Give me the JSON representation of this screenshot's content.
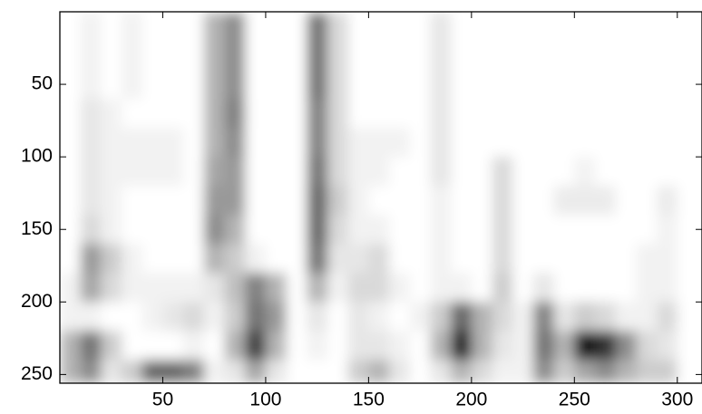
{
  "chart_data": {
    "type": "heatmap",
    "colormap": "gray-reversed",
    "xlim": [
      0,
      312
    ],
    "ylim": [
      0,
      256
    ],
    "y_reversed": true,
    "xticks": [
      50,
      100,
      150,
      200,
      250,
      300
    ],
    "yticks": [
      50,
      100,
      150,
      200,
      250
    ],
    "x_bins": [
      0,
      10,
      20,
      30,
      40,
      50,
      60,
      70,
      80,
      90,
      100,
      110,
      120,
      130,
      140,
      150,
      160,
      170,
      180,
      190,
      200,
      210,
      220,
      230,
      240,
      250,
      260,
      270,
      280,
      290,
      300,
      312
    ],
    "y_bins": [
      0,
      20,
      40,
      60,
      80,
      100,
      120,
      140,
      160,
      180,
      200,
      220,
      240,
      256
    ],
    "z": [
      [
        0,
        0.05,
        0,
        0.05,
        0,
        0,
        0,
        0.3,
        0.45,
        0,
        0,
        0,
        0.55,
        0.15,
        0,
        0,
        0,
        0,
        0.1,
        0,
        0,
        0,
        0,
        0,
        0,
        0,
        0,
        0,
        0,
        0,
        0
      ],
      [
        0,
        0.05,
        0,
        0.05,
        0,
        0,
        0,
        0.3,
        0.45,
        0,
        0,
        0,
        0.55,
        0.15,
        0,
        0,
        0,
        0,
        0.1,
        0,
        0,
        0,
        0,
        0,
        0,
        0,
        0,
        0,
        0,
        0,
        0
      ],
      [
        0,
        0.05,
        0,
        0.05,
        0,
        0,
        0,
        0.3,
        0.45,
        0,
        0,
        0,
        0.55,
        0.15,
        0,
        0,
        0,
        0,
        0.1,
        0,
        0,
        0,
        0,
        0,
        0,
        0,
        0,
        0,
        0,
        0,
        0
      ],
      [
        0,
        0.1,
        0.05,
        0,
        0,
        0,
        0,
        0.3,
        0.5,
        0,
        0,
        0,
        0.5,
        0.15,
        0,
        0,
        0,
        0,
        0.1,
        0,
        0,
        0,
        0,
        0,
        0,
        0,
        0,
        0,
        0,
        0,
        0
      ],
      [
        0,
        0.1,
        0.05,
        0.05,
        0.05,
        0.05,
        0,
        0.3,
        0.45,
        0,
        0,
        0,
        0.5,
        0.15,
        0.05,
        0.05,
        0.05,
        0,
        0.1,
        0,
        0,
        0,
        0,
        0,
        0,
        0,
        0,
        0,
        0,
        0,
        0
      ],
      [
        0,
        0.1,
        0.05,
        0.05,
        0.05,
        0.05,
        0,
        0.35,
        0.4,
        0,
        0,
        0,
        0.55,
        0.15,
        0.05,
        0.05,
        0,
        0,
        0.1,
        0,
        0,
        0.15,
        0,
        0,
        0,
        0.05,
        0,
        0,
        0,
        0,
        0
      ],
      [
        0,
        0.1,
        0.05,
        0,
        0,
        0,
        0,
        0.4,
        0.4,
        0,
        0,
        0,
        0.6,
        0.2,
        0.05,
        0,
        0,
        0,
        0.05,
        0,
        0,
        0.15,
        0,
        0,
        0.08,
        0.08,
        0.08,
        0,
        0,
        0.08,
        0
      ],
      [
        0,
        0.15,
        0.05,
        0,
        0,
        0,
        0,
        0.45,
        0.3,
        0,
        0,
        0,
        0.6,
        0.15,
        0.05,
        0.05,
        0,
        0,
        0.05,
        0,
        0,
        0.15,
        0,
        0,
        0,
        0,
        0,
        0,
        0,
        0.05,
        0
      ],
      [
        0,
        0.4,
        0.2,
        0.05,
        0,
        0,
        0,
        0.3,
        0.2,
        0.05,
        0,
        0,
        0.55,
        0.1,
        0.1,
        0.15,
        0,
        0,
        0.05,
        0,
        0,
        0.15,
        0,
        0,
        0,
        0,
        0,
        0,
        0.05,
        0.05,
        0
      ],
      [
        0.05,
        0.35,
        0.15,
        0.05,
        0.05,
        0.05,
        0.05,
        0.1,
        0.25,
        0.5,
        0.3,
        0,
        0.3,
        0.05,
        0.15,
        0.15,
        0.05,
        0,
        0.05,
        0.05,
        0,
        0.2,
        0,
        0.1,
        0,
        0,
        0,
        0,
        0.05,
        0.05,
        0
      ],
      [
        0.05,
        0.05,
        0,
        0,
        0.05,
        0.1,
        0.15,
        0.05,
        0.2,
        0.55,
        0.4,
        0,
        0.1,
        0,
        0.1,
        0.05,
        0,
        0.05,
        0.2,
        0.6,
        0.3,
        0.15,
        0.05,
        0.5,
        0.1,
        0.2,
        0.15,
        0.05,
        0.05,
        0.15,
        0
      ],
      [
        0.3,
        0.55,
        0.2,
        0,
        0,
        0,
        0.05,
        0,
        0.3,
        0.75,
        0.3,
        0,
        0.05,
        0,
        0.1,
        0.1,
        0.05,
        0,
        0.3,
        0.85,
        0.3,
        0.1,
        0.05,
        0.55,
        0.3,
        0.9,
        0.8,
        0.45,
        0.15,
        0.1,
        0
      ],
      [
        0.3,
        0.45,
        0.1,
        0.2,
        0.6,
        0.6,
        0.5,
        0.05,
        0.1,
        0.35,
        0.1,
        0,
        0,
        0,
        0.2,
        0.3,
        0.1,
        0,
        0.1,
        0.3,
        0.15,
        0.05,
        0.05,
        0.45,
        0.2,
        0.35,
        0.45,
        0.3,
        0.2,
        0.2,
        0
      ]
    ]
  }
}
